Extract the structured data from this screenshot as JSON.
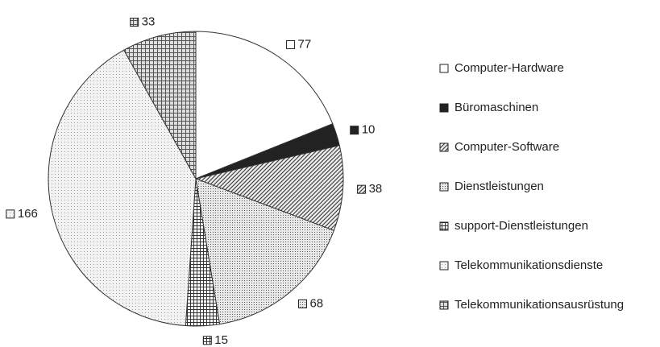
{
  "chart_data": {
    "type": "pie",
    "categories": [
      "Computer-Hardware",
      "Büromaschinen",
      "Computer-Software",
      "Dienstleistungen",
      "support-Dienstleistungen",
      "Telekommunikationsdienste",
      "Telekommunikationsausrüstung"
    ],
    "values": [
      77,
      10,
      38,
      68,
      15,
      166,
      33
    ],
    "patterns": [
      "white",
      "black",
      "hatch",
      "dots",
      "crosshatch",
      "lightdots",
      "grid"
    ],
    "legend": "right"
  }
}
